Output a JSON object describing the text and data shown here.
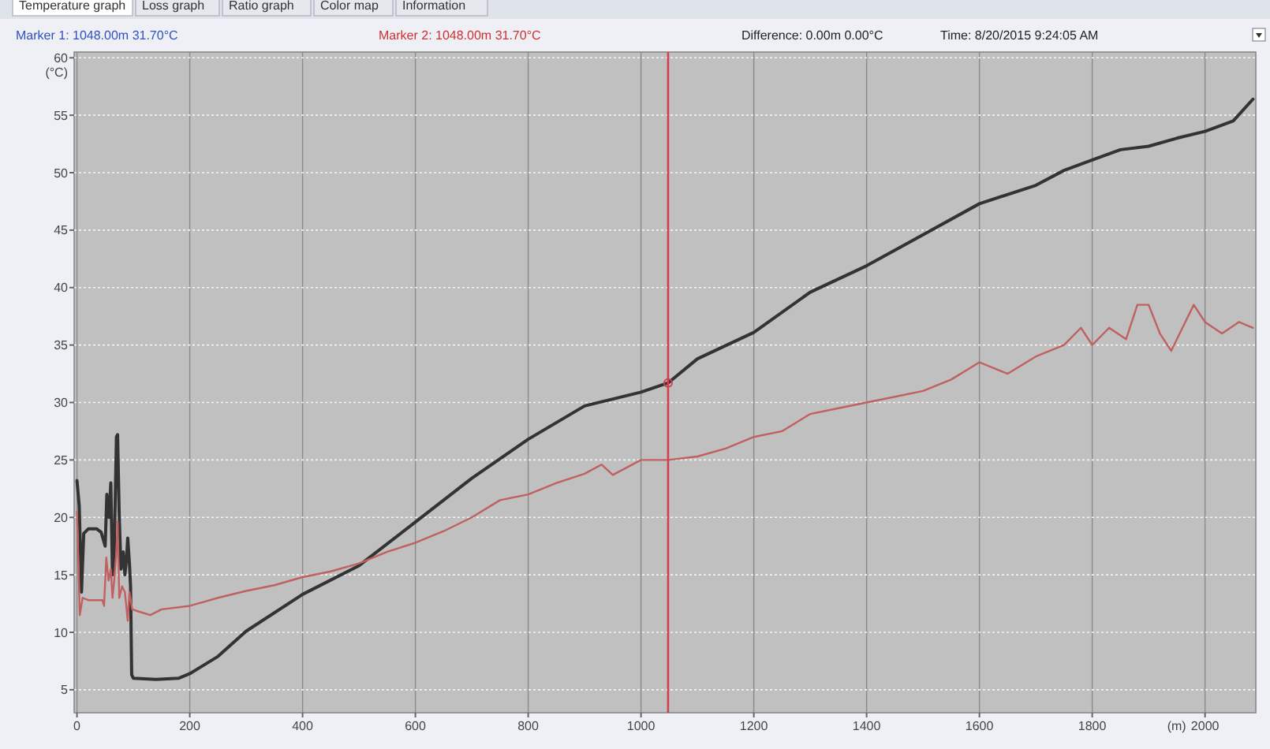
{
  "chart_data": {
    "type": "line",
    "xlabel": "(m)",
    "ylabel": "(°C)",
    "xlim": [
      -5,
      2090
    ],
    "ylim": [
      3,
      60.5
    ],
    "xticks": [
      0,
      200,
      400,
      600,
      800,
      1000,
      1200,
      1400,
      1600,
      1800,
      2000
    ],
    "yticks": [
      5,
      10,
      15,
      20,
      25,
      30,
      35,
      40,
      45,
      50,
      55,
      60
    ],
    "grid": true,
    "marker": "none",
    "line_style": "solid",
    "ref_lines": [
      {
        "axis": "x",
        "value": 1048,
        "color": "#d04050"
      }
    ],
    "annotations": [
      "Marker 1: 1048.00m 31.70°C",
      "Marker 2: 1048.00m 31.70°C",
      "Difference: 0.00m 0.00°C",
      "Time: 8/20/2015 9:24:05 AM",
      "Temperature graph",
      "Loss graph",
      "Ratio graph",
      "Color map",
      "Information"
    ],
    "series": [
      {
        "color": "#333333",
        "x": [
          0,
          4,
          8,
          12,
          20,
          35,
          43,
          50,
          53,
          57,
          60,
          63,
          66,
          70,
          72,
          75,
          78,
          82,
          85,
          88,
          90,
          93,
          95,
          97,
          100,
          140,
          180,
          200,
          250,
          300,
          400,
          500,
          600,
          700,
          800,
          900,
          1000,
          1048,
          1100,
          1200,
          1300,
          1400,
          1500,
          1600,
          1700,
          1750,
          1800,
          1850,
          1900,
          1950,
          2000,
          2050,
          2085
        ],
        "values": [
          23.2,
          21,
          13.5,
          18.6,
          19,
          19,
          18.7,
          17.5,
          22,
          20,
          23,
          15,
          17,
          27,
          27.2,
          20,
          15.5,
          17,
          15,
          16.5,
          18.2,
          16,
          14,
          6.3,
          6,
          5.9,
          6,
          6.4,
          7.9,
          10.1,
          13.3,
          15.8,
          19.6,
          23.4,
          26.8,
          29.7,
          30.9,
          31.7,
          33.8,
          36.1,
          39.6,
          41.9,
          44.6,
          47.3,
          48.9,
          50.2,
          51.1,
          52,
          52.3,
          53,
          53.6,
          54.5,
          56.4
        ]
      },
      {
        "color": "#c06060",
        "x": [
          0,
          5,
          10,
          20,
          45,
          48,
          52,
          56,
          60,
          63,
          66,
          70,
          72,
          75,
          80,
          85,
          90,
          93,
          98,
          110,
          130,
          150,
          200,
          250,
          300,
          350,
          400,
          450,
          500,
          550,
          600,
          650,
          700,
          750,
          800,
          850,
          900,
          930,
          950,
          1000,
          1048,
          1100,
          1150,
          1200,
          1250,
          1300,
          1350,
          1400,
          1450,
          1500,
          1550,
          1600,
          1650,
          1700,
          1750,
          1780,
          1800,
          1830,
          1860,
          1880,
          1900,
          1920,
          1940,
          1960,
          1980,
          2000,
          2030,
          2060,
          2085
        ],
        "values": [
          20.5,
          11.5,
          13,
          12.8,
          12.8,
          12.3,
          16.5,
          14.5,
          15.5,
          13,
          14.5,
          17,
          19.6,
          13,
          14,
          13.5,
          11,
          13.5,
          12,
          11.8,
          11.5,
          12,
          12.3,
          13,
          13.6,
          14.1,
          14.8,
          15.3,
          16,
          17,
          17.8,
          18.8,
          20,
          21.5,
          22,
          23,
          23.8,
          24.6,
          23.7,
          25,
          25,
          25.3,
          26,
          27,
          27.5,
          29,
          29.5,
          30,
          30.5,
          31,
          32,
          33.5,
          32.5,
          34,
          35,
          36.5,
          35,
          36.5,
          35.5,
          38.5,
          38.5,
          36,
          34.5,
          36.5,
          38.5,
          37,
          36,
          37,
          36.5
        ]
      }
    ]
  }
}
